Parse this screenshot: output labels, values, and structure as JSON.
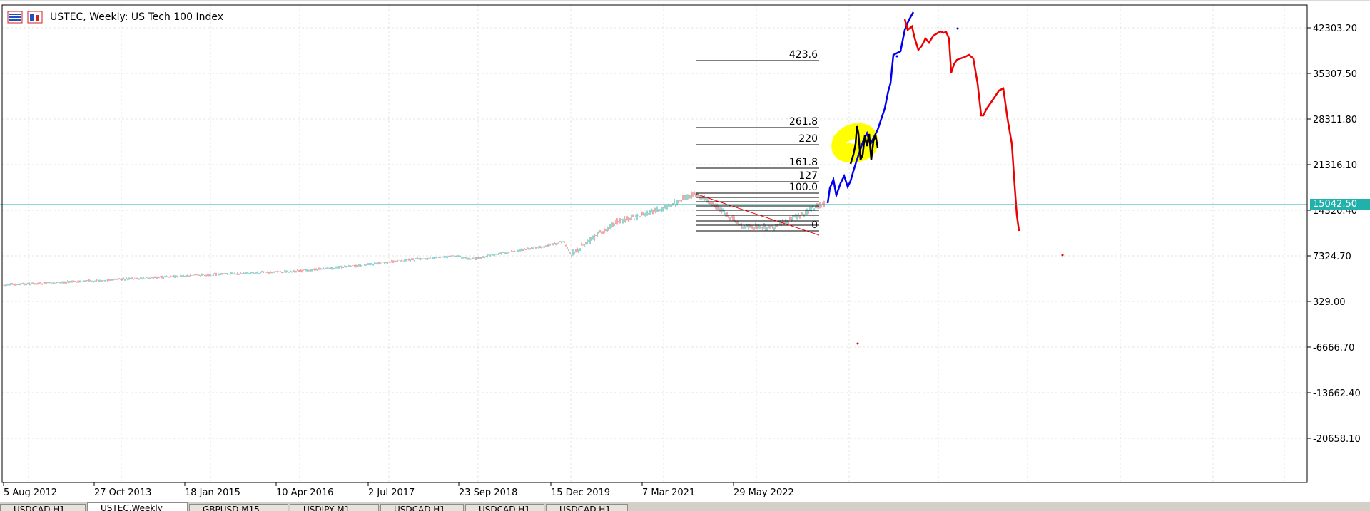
{
  "header": {
    "title": "USTEC, Weekly:  US Tech 100 Index"
  },
  "price_axis": {
    "labels": [
      "42303.20",
      "35307.50",
      "28311.80",
      "21316.10",
      "14320.40",
      "7324.70",
      "329.00",
      "-6666.70",
      "-13662.40",
      "-20658.10"
    ]
  },
  "time_axis": {
    "labels": [
      "5 Aug 2012",
      "27 Oct 2013",
      "18 Jan 2015",
      "10 Apr 2016",
      "2 Jul 2017",
      "23 Sep 2018",
      "15 Dec 2019",
      "7 Mar 2021",
      "29 May 2022"
    ]
  },
  "current_price": {
    "label": "15042.50",
    "color": "#20b2aa"
  },
  "fibonacci": {
    "levels": [
      "423.6",
      "261.8",
      "220",
      "161.8",
      "127",
      "100.0",
      "0"
    ]
  },
  "tabs": [
    {
      "label": "USDCAD,H1"
    },
    {
      "label": "USTEC,Weekly"
    },
    {
      "label": "GBPUSD,M15"
    },
    {
      "label": "USDJPY,M1"
    },
    {
      "label": "USDCAD,H1"
    },
    {
      "label": "USDCAD,H1"
    },
    {
      "label": "USDCAD,H1"
    }
  ],
  "active_tab": 1,
  "colors": {
    "grid": "#e4e4e4",
    "frame": "#000000",
    "candles_up": "#20b2aa",
    "candles_down": "#e05050",
    "drawing_blue": "#0000ee",
    "drawing_red": "#ee0000",
    "highlight": "#ffff00",
    "fib_line": "#000000"
  }
}
